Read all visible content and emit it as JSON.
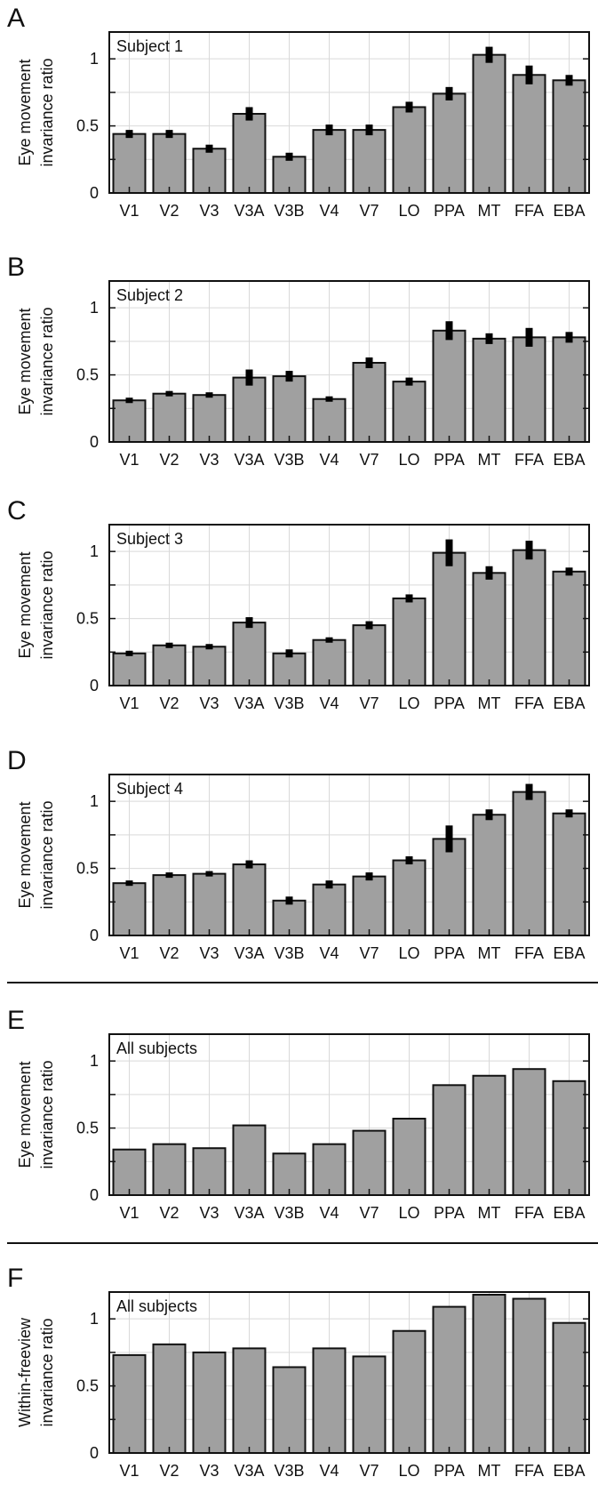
{
  "colors": {
    "bar": "#a0a0a0",
    "bar_stroke": "#111111",
    "error": "#000000",
    "grid": "#d9d9d9",
    "axis": "#111111"
  },
  "chart_data": [
    {
      "panel": "A",
      "type": "bar",
      "label": "Subject 1",
      "ylabel": [
        "Eye movement",
        "invariance ratio"
      ],
      "categories": [
        "V1",
        "V2",
        "V3",
        "V3A",
        "V3B",
        "V4",
        "V7",
        "LO",
        "PPA",
        "MT",
        "FFA",
        "EBA"
      ],
      "values": [
        0.44,
        0.44,
        0.33,
        0.59,
        0.27,
        0.47,
        0.47,
        0.64,
        0.74,
        1.03,
        0.88,
        0.84
      ],
      "errors": [
        0.03,
        0.03,
        0.03,
        0.05,
        0.03,
        0.04,
        0.04,
        0.04,
        0.05,
        0.06,
        0.07,
        0.04
      ],
      "ylim": [
        0,
        1.2
      ],
      "yticks": [
        0,
        0.5,
        1
      ],
      "ytick_labels": [
        "0",
        "0.5",
        "1"
      ],
      "grid": true
    },
    {
      "panel": "B",
      "type": "bar",
      "label": "Subject 2",
      "ylabel": [
        "Eye movement",
        "invariance ratio"
      ],
      "categories": [
        "V1",
        "V2",
        "V3",
        "V3A",
        "V3B",
        "V4",
        "V7",
        "LO",
        "PPA",
        "MT",
        "FFA",
        "EBA"
      ],
      "values": [
        0.31,
        0.36,
        0.35,
        0.48,
        0.49,
        0.32,
        0.59,
        0.45,
        0.83,
        0.77,
        0.78,
        0.78
      ],
      "errors": [
        0.02,
        0.02,
        0.02,
        0.06,
        0.04,
        0.02,
        0.04,
        0.03,
        0.07,
        0.04,
        0.07,
        0.04
      ],
      "ylim": [
        0,
        1.2
      ],
      "yticks": [
        0,
        0.5,
        1
      ],
      "ytick_labels": [
        "0",
        "0.5",
        "1"
      ],
      "grid": true
    },
    {
      "panel": "C",
      "type": "bar",
      "label": "Subject 3",
      "ylabel": [
        "Eye movement",
        "invariance ratio"
      ],
      "categories": [
        "V1",
        "V2",
        "V3",
        "V3A",
        "V3B",
        "V4",
        "V7",
        "LO",
        "PPA",
        "MT",
        "FFA",
        "EBA"
      ],
      "values": [
        0.24,
        0.3,
        0.29,
        0.47,
        0.24,
        0.34,
        0.45,
        0.65,
        0.99,
        0.84,
        1.01,
        0.85
      ],
      "errors": [
        0.02,
        0.02,
        0.02,
        0.04,
        0.03,
        0.02,
        0.03,
        0.03,
        0.1,
        0.05,
        0.07,
        0.03
      ],
      "ylim": [
        0,
        1.2
      ],
      "yticks": [
        0,
        0.5,
        1
      ],
      "ytick_labels": [
        "0",
        "0.5",
        "1"
      ],
      "grid": true
    },
    {
      "panel": "D",
      "type": "bar",
      "label": "Subject 4",
      "ylabel": [
        "Eye movement",
        "invariance ratio"
      ],
      "categories": [
        "V1",
        "V2",
        "V3",
        "V3A",
        "V3B",
        "V4",
        "V7",
        "LO",
        "PPA",
        "MT",
        "FFA",
        "EBA"
      ],
      "values": [
        0.39,
        0.45,
        0.46,
        0.53,
        0.26,
        0.38,
        0.44,
        0.56,
        0.72,
        0.9,
        1.07,
        0.91
      ],
      "errors": [
        0.02,
        0.02,
        0.02,
        0.03,
        0.03,
        0.03,
        0.03,
        0.03,
        0.1,
        0.04,
        0.06,
        0.03
      ],
      "ylim": [
        0,
        1.2
      ],
      "yticks": [
        0,
        0.5,
        1
      ],
      "ytick_labels": [
        "0",
        "0.5",
        "1"
      ],
      "grid": true
    },
    {
      "panel": "E",
      "type": "bar",
      "label": "All subjects",
      "ylabel": [
        "Eye movement",
        "invariance ratio"
      ],
      "categories": [
        "V1",
        "V2",
        "V3",
        "V3A",
        "V3B",
        "V4",
        "V7",
        "LO",
        "PPA",
        "MT",
        "FFA",
        "EBA"
      ],
      "values": [
        0.34,
        0.38,
        0.35,
        0.52,
        0.31,
        0.38,
        0.48,
        0.57,
        0.82,
        0.89,
        0.94,
        0.85
      ],
      "errors": [],
      "ylim": [
        0,
        1.2
      ],
      "yticks": [
        0,
        0.5,
        1
      ],
      "ytick_labels": [
        "0",
        "0.5",
        "1"
      ],
      "grid": true
    },
    {
      "panel": "F",
      "type": "bar",
      "label": "All subjects",
      "ylabel": [
        "Within-freeview",
        "invariance ratio"
      ],
      "categories": [
        "V1",
        "V2",
        "V3",
        "V3A",
        "V3B",
        "V4",
        "V7",
        "LO",
        "PPA",
        "MT",
        "FFA",
        "EBA"
      ],
      "values": [
        0.73,
        0.81,
        0.75,
        0.78,
        0.64,
        0.78,
        0.72,
        0.91,
        1.09,
        1.18,
        1.15,
        0.97
      ],
      "errors": [],
      "ylim": [
        0,
        1.2
      ],
      "yticks": [
        0,
        0.5,
        1
      ],
      "ytick_labels": [
        "0",
        "0.5",
        "1"
      ],
      "grid": true
    }
  ]
}
